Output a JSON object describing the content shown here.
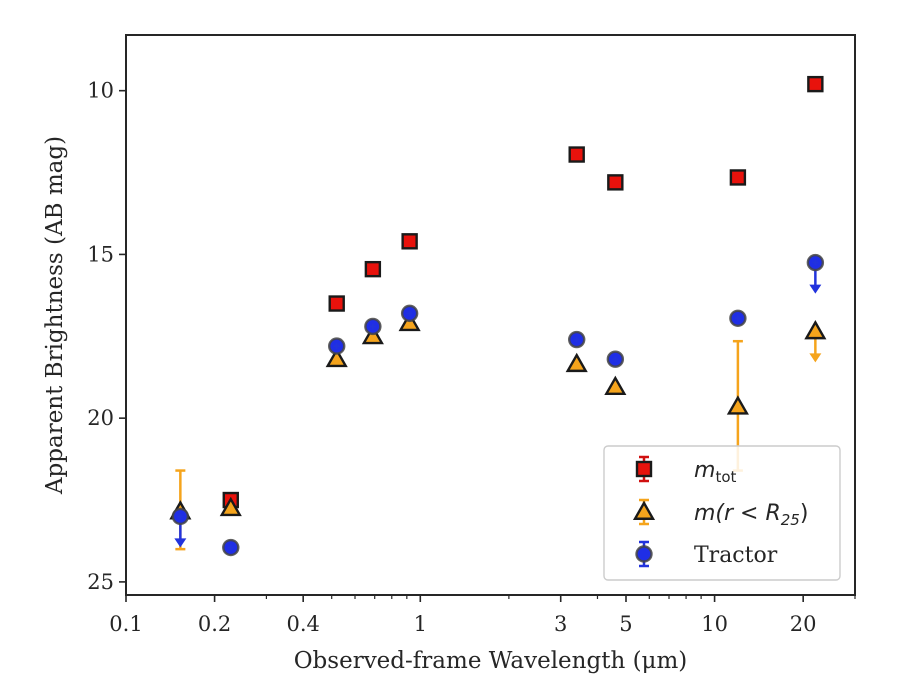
{
  "chart_data": {
    "type": "scatter",
    "title": "",
    "xlabel": "Observed-frame Wavelength (μm)",
    "ylabel": "Apparent Brightness (AB mag)",
    "xscale": "log",
    "xlim": [
      0.1,
      30
    ],
    "ylim": [
      25.4,
      8.3
    ],
    "y_inverted": true,
    "grid": false,
    "legend_position": "lower-right",
    "x_ticks": [
      {
        "value": 0.1,
        "label": "0.1"
      },
      {
        "value": 0.2,
        "label": "0.2"
      },
      {
        "value": 0.4,
        "label": "0.4"
      },
      {
        "value": 1,
        "label": "1"
      },
      {
        "value": 3,
        "label": "3"
      },
      {
        "value": 5,
        "label": "5"
      },
      {
        "value": 10,
        "label": "10"
      },
      {
        "value": 20,
        "label": "20"
      }
    ],
    "y_ticks": [
      {
        "value": 10,
        "label": "10"
      },
      {
        "value": 15,
        "label": "15"
      },
      {
        "value": 20,
        "label": "20"
      },
      {
        "value": 25,
        "label": "25"
      }
    ],
    "series": [
      {
        "name_base": "m",
        "name_sub": "tot",
        "marker": "square",
        "color": "#e8120c",
        "edge": "#1a1a1a",
        "errcolor": "#d01010",
        "points": [
          {
            "x": 0.227,
            "y": 22.5
          },
          {
            "x": 0.52,
            "y": 16.5
          },
          {
            "x": 0.69,
            "y": 15.45
          },
          {
            "x": 0.92,
            "y": 14.6
          },
          {
            "x": 3.4,
            "y": 11.95
          },
          {
            "x": 4.6,
            "y": 12.8
          },
          {
            "x": 12.0,
            "y": 12.65
          },
          {
            "x": 22.0,
            "y": 9.8
          }
        ]
      },
      {
        "name_base": "m(r < R",
        "name_sub": "25",
        "name_tail": ")",
        "marker": "triangle",
        "color": "#f5a41c",
        "edge": "#1a1a1a",
        "errcolor": "#f5a41c",
        "points": [
          {
            "x": 0.153,
            "y": 22.85,
            "err_low": 1.25,
            "err_high": 1.15
          },
          {
            "x": 0.227,
            "y": 22.75
          },
          {
            "x": 0.52,
            "y": 18.2
          },
          {
            "x": 0.69,
            "y": 17.5
          },
          {
            "x": 0.92,
            "y": 17.1
          },
          {
            "x": 3.4,
            "y": 18.35
          },
          {
            "x": 4.6,
            "y": 19.05
          },
          {
            "x": 12.0,
            "y": 19.65,
            "err_low": 2.0,
            "err_high": 1.95
          },
          {
            "x": 22.0,
            "y": 17.35,
            "upper_limit": true
          }
        ]
      },
      {
        "name": "Tractor",
        "marker": "circle",
        "color": "#1f2ee6",
        "edge": "#444444",
        "errcolor": "#2233dd",
        "points": [
          {
            "x": 0.153,
            "y": 23.0,
            "upper_limit": true
          },
          {
            "x": 0.227,
            "y": 23.95
          },
          {
            "x": 0.52,
            "y": 17.8
          },
          {
            "x": 0.69,
            "y": 17.2
          },
          {
            "x": 0.92,
            "y": 16.8
          },
          {
            "x": 3.4,
            "y": 17.6
          },
          {
            "x": 4.6,
            "y": 18.2
          },
          {
            "x": 12.0,
            "y": 16.95
          },
          {
            "x": 22.0,
            "y": 15.25,
            "upper_limit": true
          }
        ]
      }
    ]
  }
}
